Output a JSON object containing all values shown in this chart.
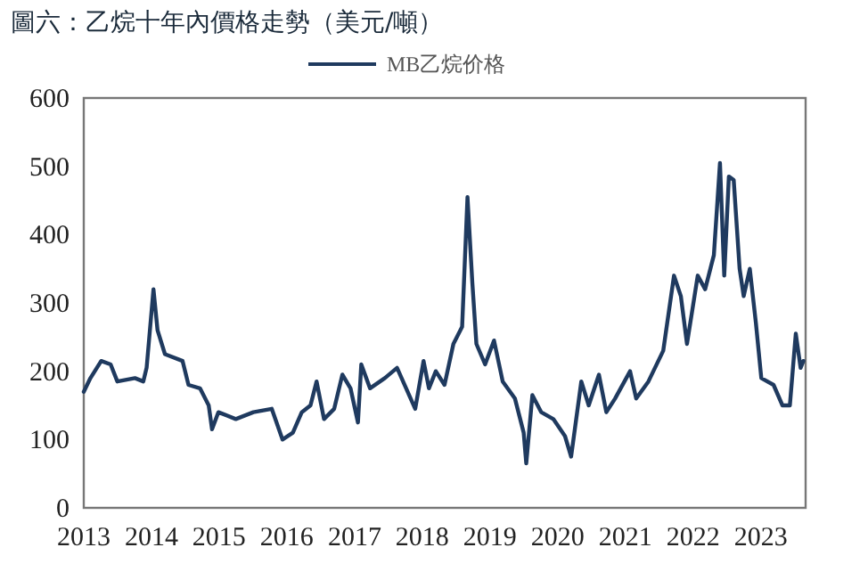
{
  "chart_data": {
    "type": "line",
    "title": "圖六：乙烷十年內價格走勢（美元/噸）",
    "x": [
      "2013-01-01",
      "2013-02-06",
      "2013-04-05",
      "2013-05-26",
      "2013-07-01",
      "2013-10-04",
      "2013-11-18",
      "2013-12-06",
      "2014-01-12",
      "2014-02-03",
      "2014-03-15",
      "2014-06-18",
      "2014-07-20",
      "2014-09-20",
      "2014-11-06",
      "2014-11-24",
      "2014-12-28",
      "2015-04-01",
      "2015-07-05",
      "2015-10-12",
      "2015-12-09",
      "2016-02-03",
      "2016-03-22",
      "2016-05-08",
      "2016-06-10",
      "2016-07-20",
      "2016-09-13",
      "2016-10-27",
      "2016-12-10",
      "2017-01-19",
      "2017-02-06",
      "2017-03-25",
      "2017-06-13",
      "2017-08-18",
      "2017-11-24",
      "2018-01-08",
      "2018-02-06",
      "2018-03-15",
      "2018-05-01",
      "2018-06-18",
      "2018-08-04",
      "2018-09-02",
      "2018-09-28",
      "2018-10-20",
      "2018-12-06",
      "2019-01-23",
      "2019-03-11",
      "2019-05-16",
      "2019-07-02",
      "2019-07-16",
      "2019-08-18",
      "2019-10-05",
      "2019-12-09",
      "2020-02-10",
      "2020-03-14",
      "2020-05-08",
      "2020-06-17",
      "2020-08-11",
      "2020-09-20",
      "2020-11-06",
      "2021-01-26",
      "2021-02-28",
      "2021-05-05",
      "2021-07-24",
      "2021-09-20",
      "2021-10-27",
      "2021-11-29",
      "2022-01-26",
      "2022-03-07",
      "2022-04-23",
      "2022-05-26",
      "2022-06-18",
      "2022-07-13",
      "2022-08-08",
      "2022-09-09",
      "2022-10-01",
      "2022-11-03",
      "2022-12-06",
      "2023-01-04",
      "2023-03-11",
      "2023-04-28",
      "2023-06-07",
      "2023-07-09",
      "2023-08-04",
      "2023-08-19"
    ],
    "series": [
      {
        "name": "MB乙烷价格",
        "color": "#1f3a5f",
        "values": [
          170,
          190,
          215,
          210,
          185,
          190,
          185,
          205,
          320,
          260,
          225,
          215,
          180,
          175,
          150,
          115,
          140,
          130,
          140,
          145,
          100,
          110,
          140,
          150,
          185,
          130,
          145,
          195,
          175,
          125,
          210,
          175,
          190,
          205,
          145,
          215,
          175,
          200,
          180,
          240,
          265,
          455,
          330,
          240,
          210,
          245,
          185,
          160,
          110,
          65,
          165,
          140,
          130,
          105,
          75,
          185,
          150,
          195,
          140,
          160,
          200,
          160,
          185,
          230,
          340,
          310,
          240,
          340,
          320,
          370,
          505,
          340,
          485,
          480,
          350,
          310,
          350,
          270,
          190,
          180,
          150,
          150,
          255,
          205,
          215
        ]
      }
    ],
    "xlim": [
      "2013-01-01",
      "2023-08-31"
    ],
    "xticks": [
      "2013",
      "2014",
      "2015",
      "2016",
      "2017",
      "2018",
      "2019",
      "2020",
      "2021",
      "2022",
      "2023"
    ],
    "ylim": [
      0,
      600
    ],
    "yticks": [
      0,
      100,
      200,
      300,
      400,
      500,
      600
    ],
    "legend": "top",
    "grid": false,
    "line_style": "solid",
    "marker": "none"
  }
}
